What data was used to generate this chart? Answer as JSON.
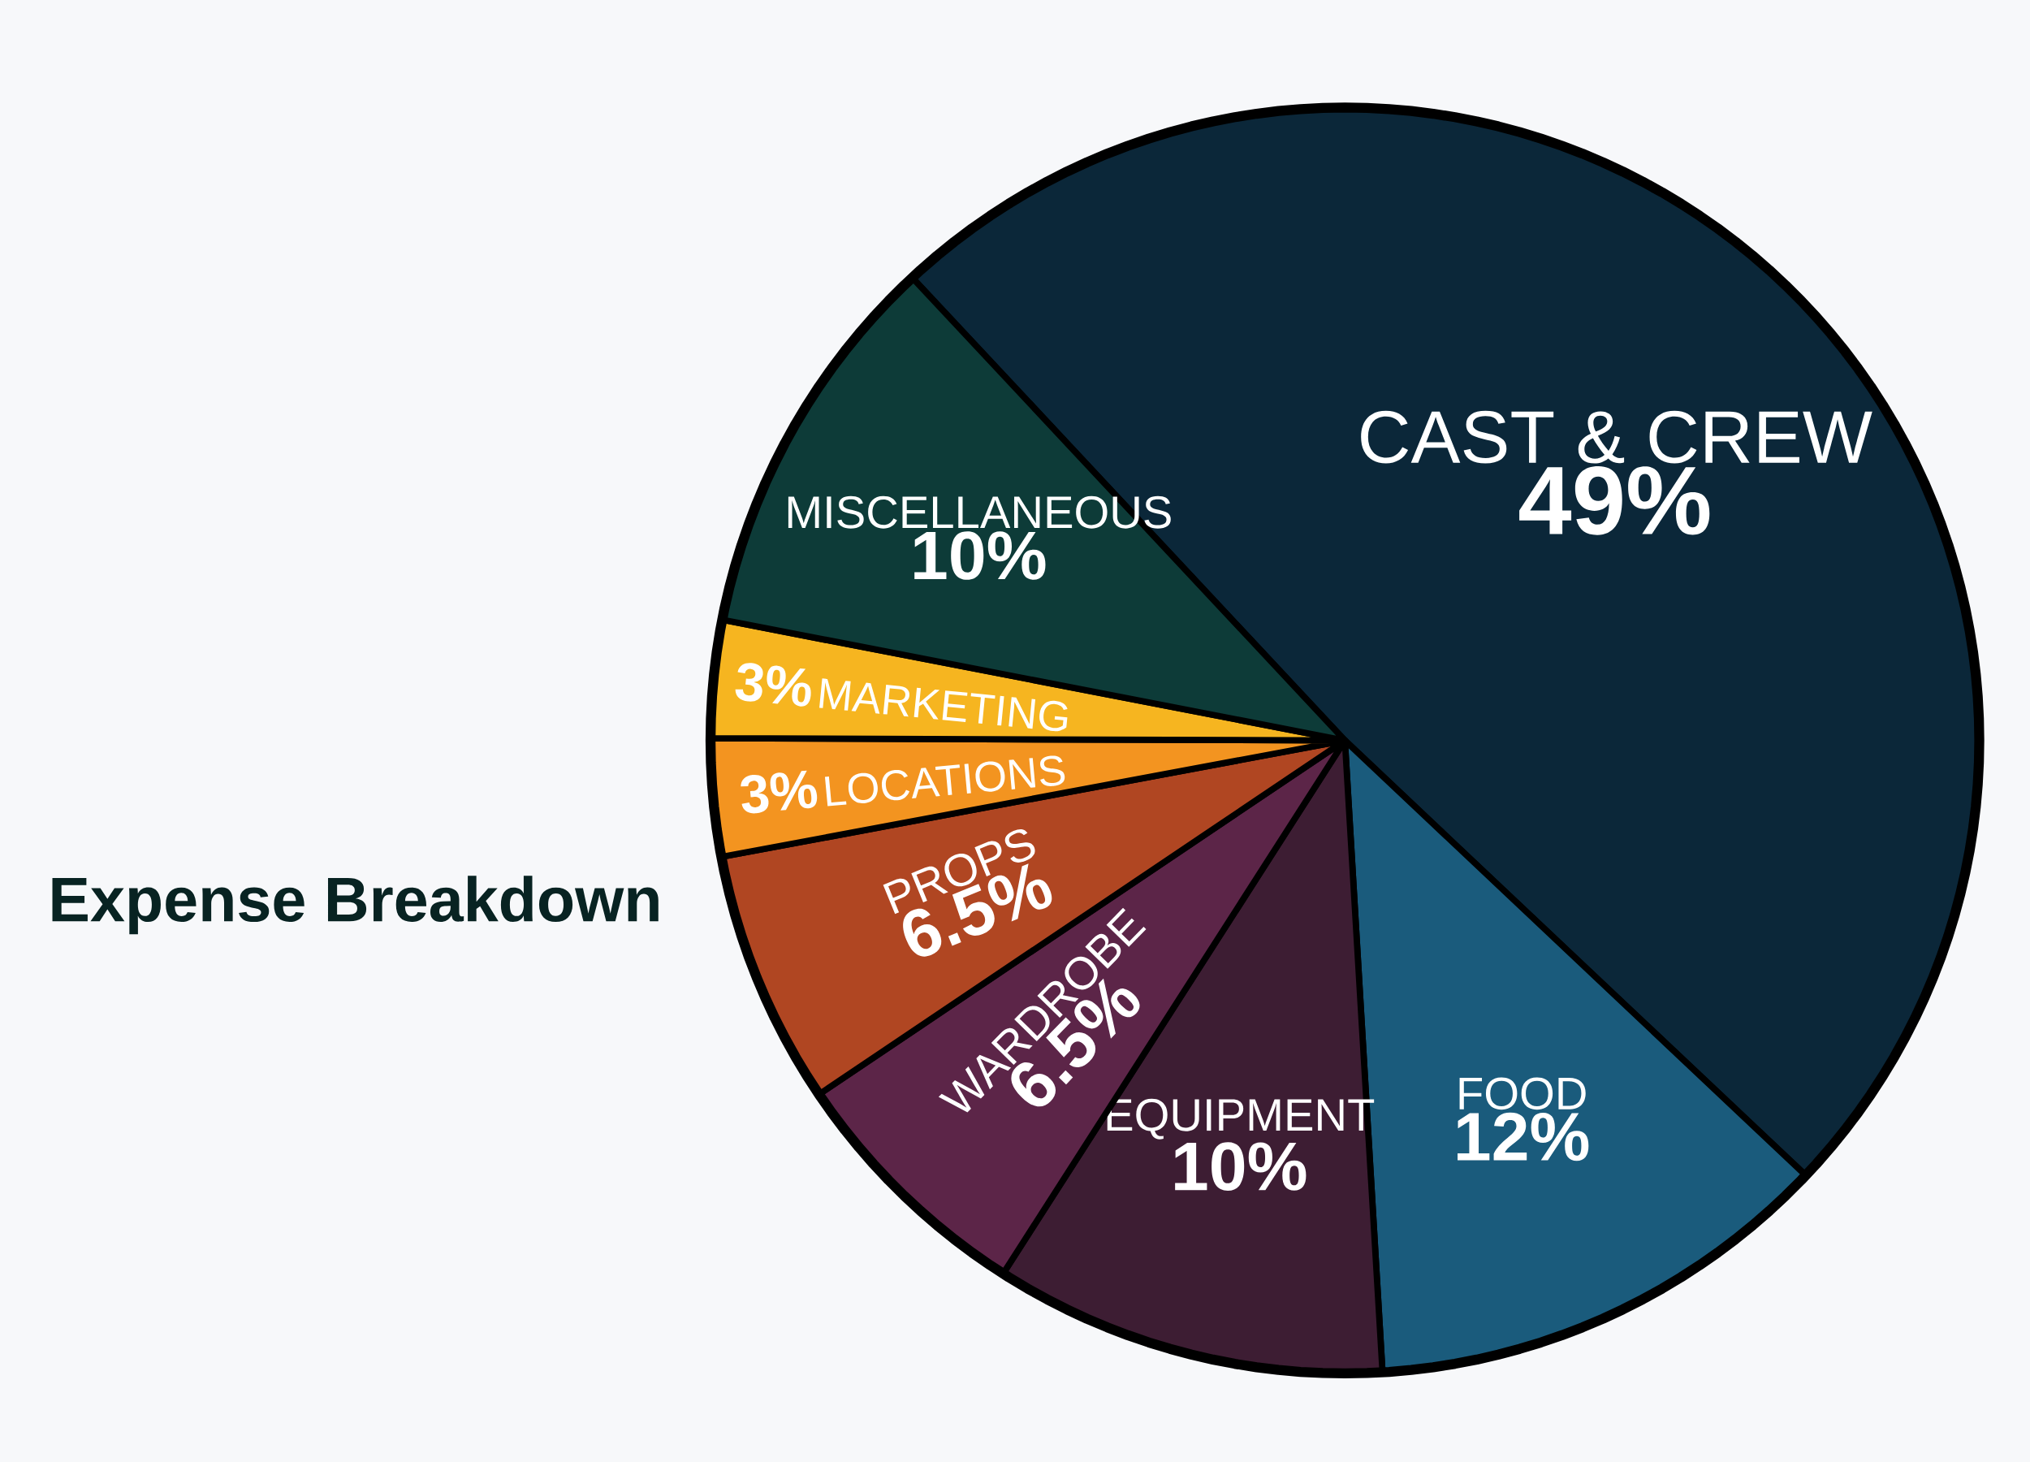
{
  "chart_data": {
    "type": "pie",
    "title": "Expense Breakdown",
    "categories": [
      "CAST & CREW",
      "FOOD",
      "EQUIPMENT",
      "WARDROBE",
      "PROPS",
      "LOCATIONS",
      "MARKETING",
      "MISCELLANEOUS"
    ],
    "values": [
      49,
      12,
      10,
      6.5,
      6.5,
      3,
      3,
      10
    ],
    "value_labels": [
      "49%",
      "12%",
      "10%",
      "6.5%",
      "6.5%",
      "3%",
      "3%",
      "10%"
    ],
    "colors": [
      "#0b2739",
      "#1a5b7c",
      "#3d1d33",
      "#5c2548",
      "#b04622",
      "#f39420",
      "#f6b520",
      "#0d3b38"
    ]
  }
}
